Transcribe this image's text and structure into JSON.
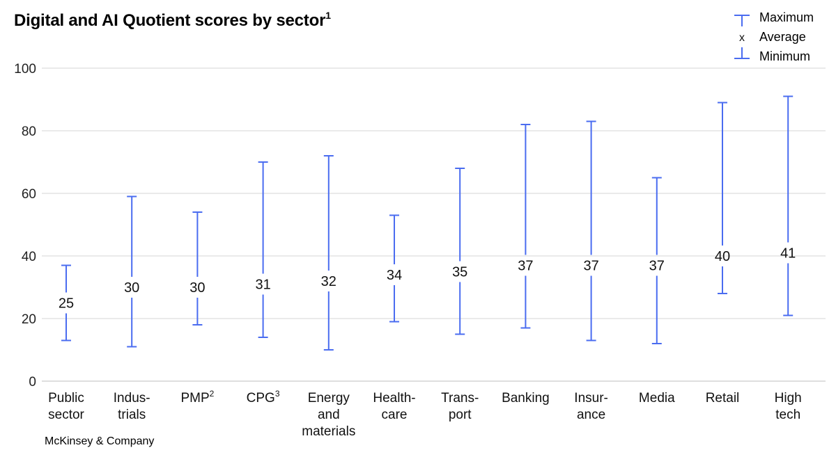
{
  "title": "Digital and AI Quotient scores by sector",
  "title_sup": "1",
  "legend": {
    "maximum": "Maximum",
    "average": "Average",
    "minimum": "Minimum"
  },
  "footer": "McKinsey & Company",
  "colors": {
    "series": "#4a6cf0",
    "grid": "#d6d6d6",
    "text": "#111111"
  },
  "chart_data": {
    "type": "range",
    "ylim": [
      0,
      100
    ],
    "yticks": [
      0,
      20,
      40,
      60,
      80,
      100
    ],
    "grid": true,
    "legend_position": "top-right",
    "categories": [
      {
        "lines": [
          "Public",
          "sector"
        ],
        "sup": ""
      },
      {
        "lines": [
          "Indus-",
          "trials"
        ],
        "sup": ""
      },
      {
        "lines": [
          "PMP"
        ],
        "sup": "2"
      },
      {
        "lines": [
          "CPG"
        ],
        "sup": "3"
      },
      {
        "lines": [
          "Energy",
          "and",
          "materials"
        ],
        "sup": ""
      },
      {
        "lines": [
          "Health-",
          "care"
        ],
        "sup": ""
      },
      {
        "lines": [
          "Trans-",
          "port"
        ],
        "sup": ""
      },
      {
        "lines": [
          "Banking"
        ],
        "sup": ""
      },
      {
        "lines": [
          "Insur-",
          "ance"
        ],
        "sup": ""
      },
      {
        "lines": [
          "Media"
        ],
        "sup": ""
      },
      {
        "lines": [
          "Retail"
        ],
        "sup": ""
      },
      {
        "lines": [
          "High",
          "tech"
        ],
        "sup": ""
      }
    ],
    "series": [
      {
        "name": "Maximum",
        "values": [
          37,
          59,
          54,
          70,
          72,
          53,
          68,
          82,
          83,
          65,
          89,
          91
        ]
      },
      {
        "name": "Average",
        "values": [
          25,
          30,
          30,
          31,
          32,
          34,
          35,
          37,
          37,
          37,
          40,
          41
        ]
      },
      {
        "name": "Minimum",
        "values": [
          13,
          11,
          18,
          14,
          10,
          19,
          15,
          17,
          13,
          12,
          28,
          21
        ]
      }
    ]
  }
}
